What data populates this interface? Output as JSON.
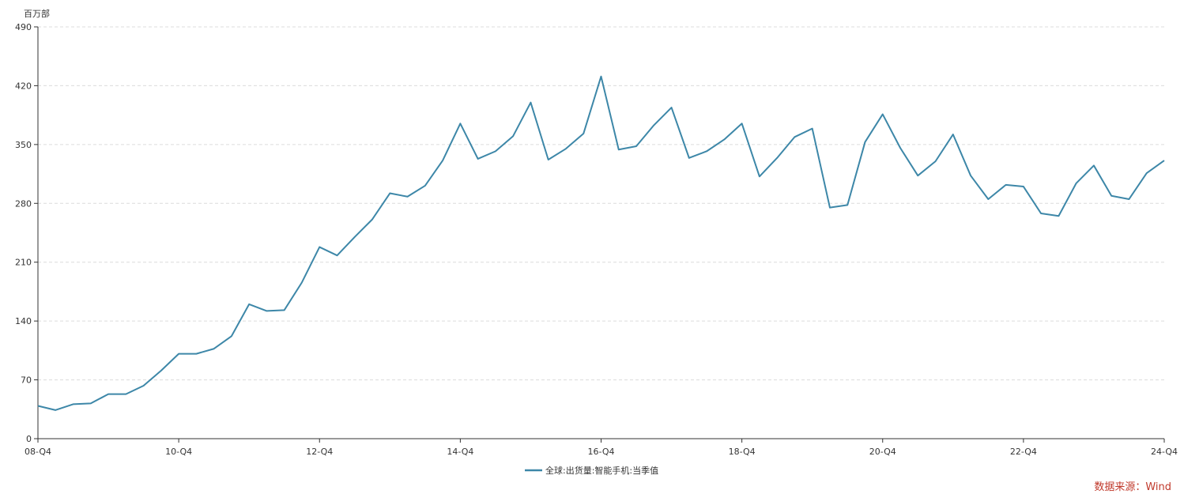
{
  "chart_data": {
    "type": "line",
    "y_unit": "百万部",
    "ylim": [
      0,
      490
    ],
    "y_ticks": [
      0,
      70,
      140,
      210,
      280,
      350,
      420,
      490
    ],
    "x_tick_labels": [
      "08-Q4",
      "10-Q4",
      "12-Q4",
      "14-Q4",
      "16-Q4",
      "18-Q4",
      "20-Q4",
      "22-Q4",
      "24-Q4"
    ],
    "grid": true,
    "legend_position": "bottom-center",
    "x": [
      "08-Q4",
      "09-Q1",
      "09-Q2",
      "09-Q3",
      "09-Q4",
      "10-Q1",
      "10-Q2",
      "10-Q3",
      "10-Q4",
      "11-Q1",
      "11-Q2",
      "11-Q3",
      "11-Q4",
      "12-Q1",
      "12-Q2",
      "12-Q3",
      "12-Q4",
      "13-Q1",
      "13-Q2",
      "13-Q3",
      "13-Q4",
      "14-Q1",
      "14-Q2",
      "14-Q3",
      "14-Q4",
      "15-Q1",
      "15-Q2",
      "15-Q3",
      "15-Q4",
      "16-Q1",
      "16-Q2",
      "16-Q3",
      "16-Q4",
      "17-Q1",
      "17-Q2",
      "17-Q3",
      "17-Q4",
      "18-Q1",
      "18-Q2",
      "18-Q3",
      "18-Q4",
      "19-Q1",
      "19-Q2",
      "19-Q3",
      "19-Q4",
      "20-Q1",
      "20-Q2",
      "20-Q3",
      "20-Q4",
      "21-Q1",
      "21-Q2",
      "21-Q3",
      "21-Q4",
      "22-Q1",
      "22-Q2",
      "22-Q3",
      "22-Q4",
      "23-Q1",
      "23-Q2",
      "23-Q3",
      "23-Q4",
      "24-Q1",
      "24-Q2",
      "24-Q3",
      "24-Q4"
    ],
    "series": [
      {
        "name": "全球:出货量:智能手机:当季值",
        "color": "#3d87a8",
        "values": [
          39,
          34,
          41,
          42,
          53,
          53,
          63,
          81,
          101,
          101,
          107,
          122,
          160,
          152,
          153,
          186,
          228,
          218,
          240,
          261,
          292,
          288,
          301,
          331,
          375,
          333,
          342,
          360,
          400,
          332,
          345,
          363,
          431,
          344,
          348,
          373,
          394,
          334,
          342,
          356,
          375,
          312,
          334,
          359,
          369,
          275,
          278,
          353,
          386,
          346,
          313,
          330,
          362,
          313,
          285,
          302,
          300,
          268,
          265,
          304,
          325,
          289,
          285,
          316,
          331
        ]
      }
    ]
  },
  "source": "数据来源：Wind"
}
